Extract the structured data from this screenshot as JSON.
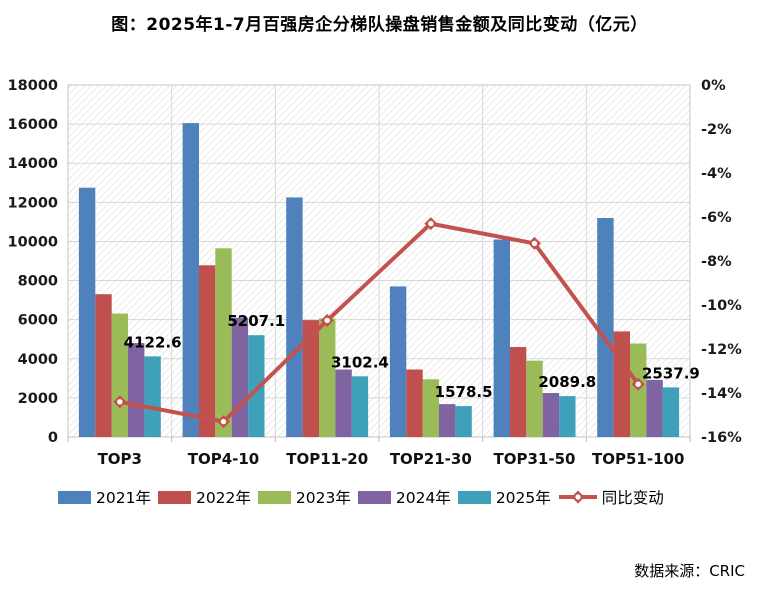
{
  "title": "图：2025年1-7月百强房企分梯队操盘销售金额及同比变动（亿元）",
  "source": "数据来源：CRIC",
  "chart_data": {
    "type": "bar",
    "subtype": "grouped-bars-with-line",
    "title": "图：2025年1-7月百强房企分梯队操盘销售金额及同比变动（亿元）",
    "categories": [
      "TOP3",
      "TOP4-10",
      "TOP11-20",
      "TOP21-30",
      "TOP31-50",
      "TOP51-100"
    ],
    "series": [
      {
        "name": "2021年",
        "color": "#4F81BD",
        "values": [
          12750,
          16050,
          12250,
          7700,
          10100,
          11200
        ]
      },
      {
        "name": "2022年",
        "color": "#C0504D",
        "values": [
          7300,
          8780,
          5980,
          3450,
          4600,
          5400
        ]
      },
      {
        "name": "2023年",
        "color": "#9BBB59",
        "values": [
          6310,
          9650,
          6060,
          2950,
          3900,
          4780
        ]
      },
      {
        "name": "2024年",
        "color": "#8064A2",
        "values": [
          4800,
          6100,
          3450,
          1680,
          2250,
          2920
        ]
      },
      {
        "name": "2025年",
        "color": "#3FA0BA",
        "values": [
          4122.6,
          5207.1,
          3102.4,
          1578.5,
          2089.8,
          2537.9
        ],
        "data_labels": [
          "4122.6",
          "5207.1",
          "3102.4",
          "1578.5",
          "2089.8",
          "2537.9"
        ]
      }
    ],
    "line_series": {
      "name": "同比变动",
      "color": "#C3524E",
      "axis": "right",
      "values_pct": [
        -14.4,
        -15.3,
        -10.7,
        -6.3,
        -7.2,
        -13.6
      ]
    },
    "left_axis": {
      "min": 0,
      "max": 18000,
      "step": 2000,
      "ticks": [
        "0",
        "2000",
        "4000",
        "6000",
        "8000",
        "10000",
        "12000",
        "14000",
        "16000",
        "18000"
      ]
    },
    "right_axis": {
      "min": -16,
      "max": 0,
      "step": 2,
      "ticks": [
        "0%",
        "-2%",
        "-4%",
        "-6%",
        "-8%",
        "-10%",
        "-12%",
        "-14%",
        "-16%"
      ]
    },
    "grid": true,
    "plot_background": "diagonal-hatch",
    "legend_position": "bottom"
  }
}
